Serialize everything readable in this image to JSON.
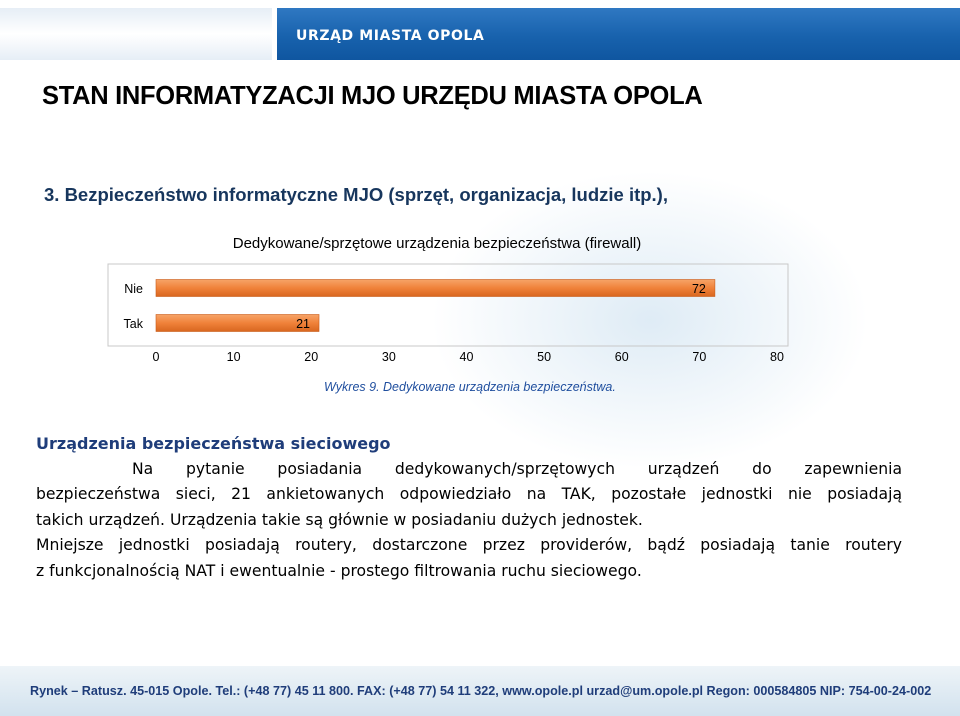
{
  "header": {
    "brand": "URZĄD MIASTA OPOLA"
  },
  "page_title": "STAN INFORMATYZACJI MJO URZĘDU MIASTA OPOLA",
  "section_title": "3. Bezpieczeństwo informatyczne MJO (sprzęt, organizacja, ludzie itp.),",
  "chart_data": {
    "type": "bar",
    "orientation": "horizontal",
    "title": "Dedykowane/sprzętowe urządzenia bezpieczeństwa (firewall)",
    "categories": [
      "Nie",
      "Tak"
    ],
    "values": [
      72,
      21
    ],
    "data_labels": [
      "72",
      "21"
    ],
    "xlim": [
      0,
      80
    ],
    "xticks": [
      "0",
      "10",
      "20",
      "30",
      "40",
      "50",
      "60",
      "70",
      "80"
    ],
    "bar_color": "#f0823a",
    "grid": false
  },
  "caption": "Wykres 9. Dedykowane urządzenia bezpieczeństwa.",
  "body": {
    "heading": "Urządzenia bezpieczeństwa sieciowego",
    "line1": "Na pytanie posiadania dedykowanych/sprzętowych urządzeń do zapewnienia",
    "line2": "bezpieczeństwa sieci, 21 ankietowanych odpowiedziało na TAK, pozostałe jednostki nie posiadają",
    "line3": "takich urządzeń. Urządzenia takie są głównie w posiadaniu dużych jednostek.",
    "line4": "Mniejsze jednostki posiadają routery, dostarczone przez providerów, bądź posiadają tanie routery",
    "line5": "z funkcjonalnością NAT i ewentualnie - prostego filtrowania ruchu sieciowego."
  },
  "footer": {
    "text": "Rynek – Ratusz. 45-015 Opole. Tel.: (+48 77) 45 11 800. FAX: (+48 77) 54 11 322, www.opole.pl   urzad@um.opole.pl   Regon: 000584805   NIP: 754-00-24-002"
  }
}
